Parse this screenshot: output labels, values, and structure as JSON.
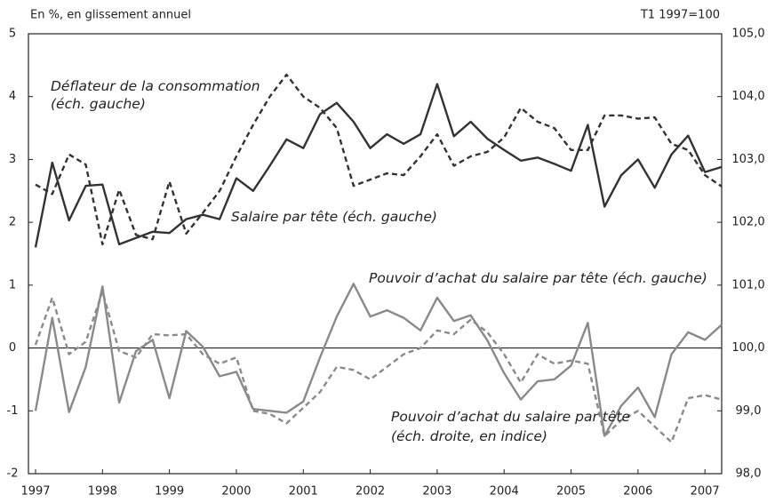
{
  "chart_data": {
    "type": "line",
    "header_left": "En %, en glissement annuel",
    "header_right": "T1 1997=100",
    "annotations": [
      "Déflateur de la consommation",
      "(éch. gauche)",
      "Salaire par tête (éch. gauche)",
      "Pouvoir d’achat du salaire par tête (éch. gauche)",
      "Pouvoir d’achat du salaire par tête",
      "(éch. droite, en indice)"
    ],
    "x": [
      1997,
      1997.25,
      1997.5,
      1997.75,
      1998,
      1998.25,
      1998.5,
      1998.75,
      1999,
      1999.25,
      1999.5,
      1999.75,
      2000,
      2000.25,
      2000.5,
      2000.75,
      2001,
      2001.25,
      2001.5,
      2001.75,
      2002,
      2002.25,
      2002.5,
      2002.75,
      2003,
      2003.25,
      2003.5,
      2003.75,
      2004,
      2004.25,
      2004.5,
      2004.75,
      2005,
      2005.25,
      2005.5,
      2005.75,
      2006,
      2006.25,
      2006.5,
      2006.75,
      2007,
      2007.25
    ],
    "xlim": [
      1997,
      2007.25
    ],
    "xticks": [
      1997,
      1998,
      1999,
      2000,
      2001,
      2002,
      2003,
      2004,
      2005,
      2006,
      2007
    ],
    "ylim": [
      -2,
      5
    ],
    "yticks": [
      -2,
      -1,
      0,
      1,
      2,
      3,
      4,
      5
    ],
    "y2lim": [
      98,
      105
    ],
    "y2ticks": [
      {
        "value": 98,
        "label": "98,0"
      },
      {
        "value": 99,
        "label": "99,0"
      },
      {
        "value": 100,
        "label": "100,0"
      },
      {
        "value": 101,
        "label": "101,0"
      },
      {
        "value": 102,
        "label": "102,0"
      },
      {
        "value": 103,
        "label": "103,0"
      },
      {
        "value": 104,
        "label": "104,0"
      },
      {
        "value": 105,
        "label": "105,0"
      }
    ],
    "series": [
      {
        "color": "#333333",
        "dashed": true,
        "values": [
          2.6,
          2.45,
          3.08,
          2.92,
          1.65,
          2.52,
          1.8,
          1.73,
          2.65,
          1.82,
          2.15,
          2.5,
          3.05,
          3.55,
          4.0,
          4.35,
          4.0,
          3.82,
          3.5,
          2.58,
          2.68,
          2.78,
          2.75,
          3.05,
          3.4,
          2.9,
          3.05,
          3.12,
          3.35,
          3.82,
          3.6,
          3.5,
          3.15,
          3.15,
          3.7,
          3.7,
          3.65,
          3.67,
          3.25,
          3.15,
          2.75,
          2.57
        ]
      },
      {
        "color": "#333333",
        "dashed": false,
        "values": [
          1.6,
          2.95,
          2.03,
          2.58,
          2.6,
          1.65,
          1.75,
          1.85,
          1.83,
          2.05,
          2.12,
          2.05,
          2.7,
          2.5,
          2.9,
          3.32,
          3.18,
          3.72,
          3.9,
          3.6,
          3.18,
          3.4,
          3.25,
          3.4,
          4.2,
          3.37,
          3.6,
          3.33,
          3.15,
          2.98,
          3.03,
          2.93,
          2.82,
          3.55,
          2.25,
          2.75,
          3.0,
          2.55,
          3.08,
          3.38,
          2.8,
          2.88
        ]
      },
      {
        "color": "#8a8a8a",
        "dashed": false,
        "values": [
          -1.0,
          0.48,
          -1.02,
          -0.3,
          0.98,
          -0.87,
          -0.05,
          0.13,
          -0.8,
          0.27,
          0.02,
          -0.45,
          -0.38,
          -0.97,
          -1.0,
          -1.03,
          -0.85,
          -0.15,
          0.5,
          1.02,
          0.5,
          0.6,
          0.48,
          0.28,
          0.8,
          0.43,
          0.52,
          0.12,
          -0.4,
          -0.82,
          -0.53,
          -0.5,
          -0.28,
          0.4,
          -1.4,
          -0.92,
          -0.63,
          -1.1,
          -0.1,
          0.25,
          0.13,
          0.37
        ]
      },
      {
        "color": "#8a8a8a",
        "dashed": true,
        "axis": "y2",
        "values": [
          100.05,
          100.8,
          99.9,
          100.1,
          100.9,
          99.95,
          99.85,
          100.22,
          100.2,
          100.22,
          99.9,
          99.75,
          99.85,
          99.0,
          98.95,
          98.8,
          99.05,
          99.3,
          99.7,
          99.65,
          99.5,
          99.7,
          99.9,
          100.0,
          100.28,
          100.22,
          100.45,
          100.25,
          99.9,
          99.45,
          99.9,
          99.75,
          99.8,
          99.75,
          98.6,
          98.85,
          99.0,
          98.75,
          98.5,
          99.2,
          99.25,
          99.18
        ]
      }
    ]
  }
}
